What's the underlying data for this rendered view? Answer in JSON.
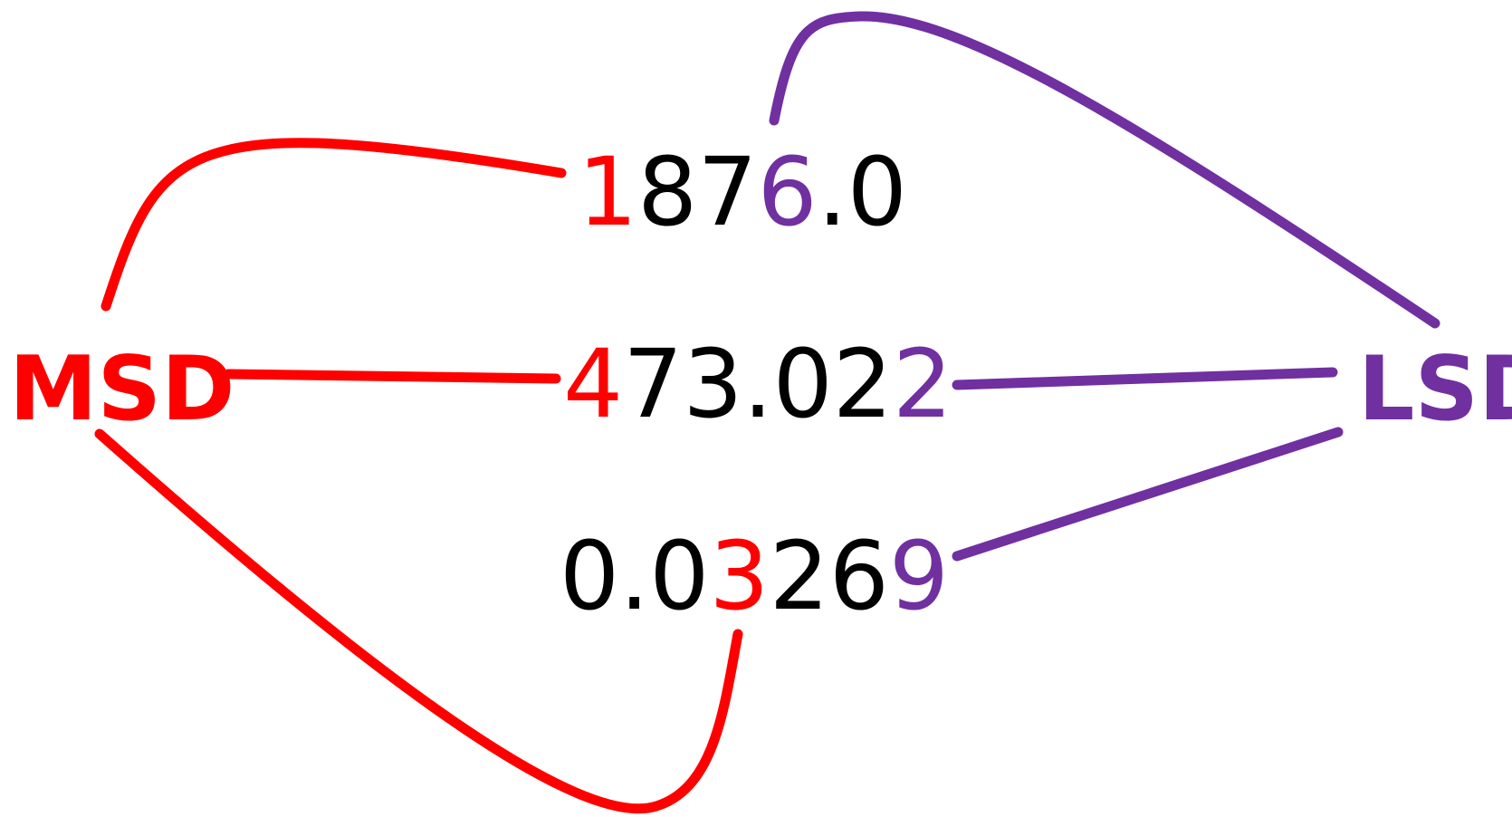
{
  "colors": {
    "msd": "#ff0000",
    "lsd": "#7030a0",
    "normal": "#000000"
  },
  "labels": {
    "msd": "MSD",
    "lsd": "LSD"
  },
  "numbers": [
    {
      "id": "number-1876",
      "digits": [
        {
          "ch": "1",
          "role": "msd"
        },
        {
          "ch": "8",
          "role": "normal"
        },
        {
          "ch": "7",
          "role": "normal"
        },
        {
          "ch": "6",
          "role": "lsd"
        },
        {
          "ch": ".",
          "role": "normal"
        },
        {
          "ch": "0",
          "role": "normal"
        }
      ]
    },
    {
      "id": "number-473",
      "digits": [
        {
          "ch": "4",
          "role": "msd"
        },
        {
          "ch": "7",
          "role": "normal"
        },
        {
          "ch": "3",
          "role": "normal"
        },
        {
          "ch": ".",
          "role": "normal"
        },
        {
          "ch": "0",
          "role": "normal"
        },
        {
          "ch": "2",
          "role": "normal"
        },
        {
          "ch": "2",
          "role": "lsd"
        }
      ]
    },
    {
      "id": "number-003269",
      "digits": [
        {
          "ch": "0",
          "role": "normal"
        },
        {
          "ch": ".",
          "role": "normal"
        },
        {
          "ch": "0",
          "role": "normal"
        },
        {
          "ch": "3",
          "role": "msd"
        },
        {
          "ch": "2",
          "role": "normal"
        },
        {
          "ch": "6",
          "role": "normal"
        },
        {
          "ch": "9",
          "role": "lsd"
        }
      ]
    }
  ]
}
